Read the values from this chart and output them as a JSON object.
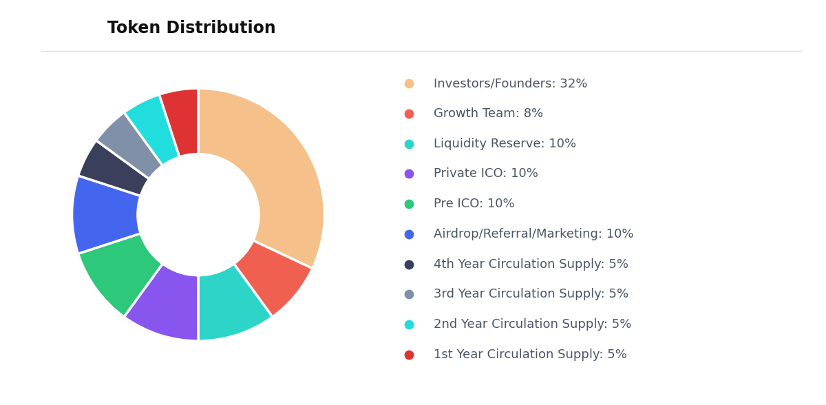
{
  "title": "Token Distribution",
  "title_fontsize": 17,
  "title_fontweight": "bold",
  "title_color": "#111111",
  "background_color": "#ffffff",
  "labels": [
    "Investors/Founders: 32%",
    "Growth Team: 8%",
    "Liquidity Reserve: 10%",
    "Private ICO: 10%",
    "Pre ICO: 10%",
    "Airdrop/Referral/Marketing: 10%",
    "4th Year Circulation Supply: 5%",
    "3rd Year Circulation Supply: 5%",
    "2nd Year Circulation Supply: 5%",
    "1st Year Circulation Supply: 5%"
  ],
  "values": [
    32,
    8,
    10,
    10,
    10,
    10,
    5,
    5,
    5,
    5
  ],
  "colors": [
    "#F5C08A",
    "#F06050",
    "#2DD4C8",
    "#8855EE",
    "#2DC87A",
    "#4466EE",
    "#3A3F5C",
    "#8090A8",
    "#22DDDD",
    "#DD3333"
  ],
  "legend_text_color": "#4A5568",
  "legend_fontsize": 13,
  "dot_size": 80,
  "figsize": [
    12.0,
    5.88
  ],
  "dpi": 100
}
